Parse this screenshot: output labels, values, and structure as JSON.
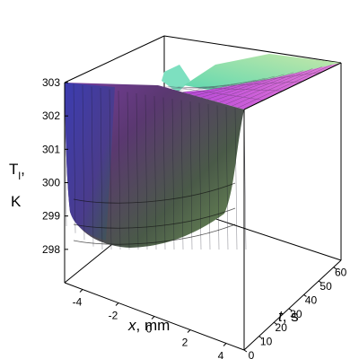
{
  "chart_data": {
    "type": "surface3d",
    "zlabel": {
      "main": "T",
      "sub": "l",
      "tail": ",",
      "unit": "K"
    },
    "xlabel": {
      "name": "x",
      "unit": ", mm"
    },
    "ylabel": {
      "name": "t",
      "unit": ", s"
    },
    "x_range": [
      -5,
      5
    ],
    "t_range": [
      0,
      65
    ],
    "z_range": [
      297,
      303
    ],
    "x_ticks": [
      "-4",
      "-2",
      "0",
      "2",
      "4"
    ],
    "t_ticks": [
      "0",
      "10",
      "20",
      "30",
      "40",
      "50",
      "60"
    ],
    "z_ticks": [
      "298",
      "299",
      "300",
      "301",
      "302",
      "303"
    ],
    "surface_description": "Liquid temperature profile: 303 K near x = ±5 mm and late times; trough to about 297.8 K near x = 0 at t = 0",
    "t_min": 297.8,
    "t_max": 303,
    "colors": {
      "left_wall": "#3a3aa8",
      "front_face": "#6a3a8a",
      "bottom": "#55704a",
      "top_surface": "#d060d8",
      "right_surface": "#7de0c0"
    }
  }
}
